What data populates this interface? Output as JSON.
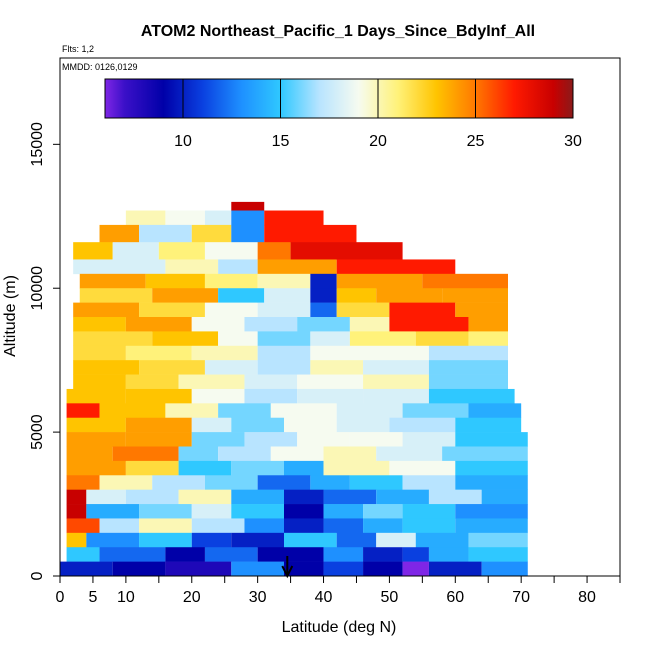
{
  "chart_data": {
    "type": "heatmap",
    "title": "ATOM2 Northeast_Pacific_1 Days_Since_BdyInf_All",
    "flights_note": "Flts: 1,2",
    "dates_note": "MMDD: 0126,0129",
    "xlabel": "Latitude (deg N)",
    "ylabel": "Altitude (m)",
    "xlim": [
      0,
      85
    ],
    "ylim": [
      0,
      18000
    ],
    "x_ticks": [
      0,
      5,
      10,
      20,
      30,
      40,
      50,
      60,
      70,
      80
    ],
    "x_minor_ticks": [
      15,
      25,
      35,
      45,
      55,
      65,
      75,
      85
    ],
    "y_ticks": [
      0,
      5000,
      10000,
      15000
    ],
    "colorbar": {
      "range": [
        6,
        30
      ],
      "ticks": [
        10,
        15,
        20,
        25,
        30
      ],
      "stops": [
        {
          "v": 6,
          "color": "#7f26e6"
        },
        {
          "v": 7,
          "color": "#3b10c8"
        },
        {
          "v": 9,
          "color": "#0000a8"
        },
        {
          "v": 11,
          "color": "#0a40e0"
        },
        {
          "v": 13,
          "color": "#1e90ff"
        },
        {
          "v": 15,
          "color": "#2fc8ff"
        },
        {
          "v": 17,
          "color": "#b8e4ff"
        },
        {
          "v": 19,
          "color": "#f6fbf0"
        },
        {
          "v": 21,
          "color": "#fff27a"
        },
        {
          "v": 23,
          "color": "#ffc400"
        },
        {
          "v": 25,
          "color": "#ff7800"
        },
        {
          "v": 27,
          "color": "#ff1a00"
        },
        {
          "v": 29,
          "color": "#c80000"
        },
        {
          "v": 30,
          "color": "#8b1a1a"
        }
      ]
    },
    "marker": {
      "type": "arrow",
      "x": 34.5
    },
    "bands": [
      {
        "alt": [
          12700,
          13000
        ],
        "segs": [
          [
            26,
            31,
            29
          ]
        ]
      },
      {
        "alt": [
          12200,
          12700
        ],
        "segs": [
          [
            10,
            16,
            20
          ],
          [
            16,
            22,
            19
          ],
          [
            22,
            26,
            18
          ],
          [
            26,
            31,
            13
          ],
          [
            31,
            40,
            27
          ]
        ]
      },
      {
        "alt": [
          11600,
          12200
        ],
        "segs": [
          [
            6,
            12,
            24
          ],
          [
            12,
            20,
            17
          ],
          [
            20,
            26,
            22
          ],
          [
            26,
            31,
            13
          ],
          [
            31,
            45,
            27
          ]
        ]
      },
      {
        "alt": [
          11000,
          11600
        ],
        "segs": [
          [
            2,
            8,
            23
          ],
          [
            8,
            15,
            18
          ],
          [
            15,
            22,
            21
          ],
          [
            22,
            30,
            19
          ],
          [
            30,
            35,
            25
          ],
          [
            35,
            52,
            28
          ]
        ]
      },
      {
        "alt": [
          10500,
          11000
        ],
        "segs": [
          [
            2,
            16,
            18
          ],
          [
            16,
            24,
            20
          ],
          [
            24,
            30,
            17
          ],
          [
            30,
            42,
            24
          ],
          [
            42,
            60,
            27
          ]
        ]
      },
      {
        "alt": [
          10000,
          10500
        ],
        "segs": [
          [
            3,
            13,
            24
          ],
          [
            13,
            22,
            23
          ],
          [
            22,
            30,
            21
          ],
          [
            30,
            38,
            20
          ],
          [
            38,
            42,
            10
          ],
          [
            42,
            55,
            24
          ],
          [
            55,
            68,
            25
          ]
        ]
      },
      {
        "alt": [
          9500,
          10000
        ],
        "segs": [
          [
            3,
            14,
            22
          ],
          [
            14,
            24,
            24
          ],
          [
            24,
            31,
            15
          ],
          [
            31,
            38,
            18
          ],
          [
            38,
            42,
            10
          ],
          [
            42,
            48,
            23
          ],
          [
            48,
            58,
            24
          ],
          [
            58,
            68,
            24
          ]
        ]
      },
      {
        "alt": [
          9000,
          9500
        ],
        "segs": [
          [
            2,
            12,
            24
          ],
          [
            12,
            22,
            22
          ],
          [
            22,
            30,
            19
          ],
          [
            30,
            38,
            18
          ],
          [
            38,
            42,
            12
          ],
          [
            42,
            50,
            22
          ],
          [
            50,
            60,
            27
          ],
          [
            60,
            68,
            24
          ]
        ]
      },
      {
        "alt": [
          8500,
          9000
        ],
        "segs": [
          [
            2,
            10,
            23
          ],
          [
            10,
            20,
            24
          ],
          [
            20,
            28,
            19
          ],
          [
            28,
            36,
            17
          ],
          [
            36,
            44,
            16
          ],
          [
            44,
            50,
            20
          ],
          [
            50,
            62,
            27
          ],
          [
            62,
            68,
            24
          ]
        ]
      },
      {
        "alt": [
          8000,
          8500
        ],
        "segs": [
          [
            2,
            14,
            22
          ],
          [
            14,
            24,
            23
          ],
          [
            24,
            30,
            19
          ],
          [
            30,
            38,
            16
          ],
          [
            38,
            44,
            18
          ],
          [
            44,
            54,
            21
          ],
          [
            54,
            62,
            22
          ],
          [
            62,
            68,
            21
          ]
        ]
      },
      {
        "alt": [
          7500,
          8000
        ],
        "segs": [
          [
            2,
            10,
            22
          ],
          [
            10,
            20,
            21
          ],
          [
            20,
            30,
            20
          ],
          [
            30,
            38,
            17
          ],
          [
            38,
            46,
            19
          ],
          [
            46,
            56,
            19
          ],
          [
            56,
            68,
            17
          ]
        ]
      },
      {
        "alt": [
          7000,
          7500
        ],
        "segs": [
          [
            2,
            12,
            23
          ],
          [
            12,
            22,
            22
          ],
          [
            22,
            30,
            18
          ],
          [
            30,
            38,
            17
          ],
          [
            38,
            46,
            20
          ],
          [
            46,
            56,
            18
          ],
          [
            56,
            68,
            16
          ]
        ]
      },
      {
        "alt": [
          6500,
          7000
        ],
        "segs": [
          [
            2,
            10,
            23
          ],
          [
            10,
            18,
            22
          ],
          [
            18,
            28,
            20
          ],
          [
            28,
            36,
            18
          ],
          [
            36,
            46,
            19
          ],
          [
            46,
            56,
            20
          ],
          [
            56,
            68,
            16
          ]
        ]
      },
      {
        "alt": [
          6000,
          6500
        ],
        "segs": [
          [
            1,
            10,
            23
          ],
          [
            10,
            20,
            23
          ],
          [
            20,
            28,
            19
          ],
          [
            28,
            36,
            17
          ],
          [
            36,
            46,
            18
          ],
          [
            46,
            56,
            18
          ],
          [
            56,
            69,
            15
          ]
        ]
      },
      {
        "alt": [
          5500,
          6000
        ],
        "segs": [
          [
            1,
            6,
            27
          ],
          [
            6,
            16,
            23
          ],
          [
            16,
            24,
            20
          ],
          [
            24,
            32,
            16
          ],
          [
            32,
            42,
            19
          ],
          [
            42,
            52,
            18
          ],
          [
            52,
            62,
            16
          ],
          [
            62,
            70,
            14
          ]
        ]
      },
      {
        "alt": [
          5000,
          5500
        ],
        "segs": [
          [
            1,
            10,
            23
          ],
          [
            10,
            20,
            24
          ],
          [
            20,
            26,
            18
          ],
          [
            26,
            34,
            16
          ],
          [
            34,
            42,
            19
          ],
          [
            42,
            50,
            18
          ],
          [
            50,
            60,
            17
          ],
          [
            60,
            70,
            15
          ]
        ]
      },
      {
        "alt": [
          4500,
          5000
        ],
        "segs": [
          [
            1,
            10,
            24
          ],
          [
            10,
            20,
            24
          ],
          [
            20,
            28,
            16
          ],
          [
            28,
            36,
            17
          ],
          [
            36,
            44,
            19
          ],
          [
            44,
            52,
            19
          ],
          [
            52,
            60,
            18
          ],
          [
            60,
            71,
            15
          ]
        ]
      },
      {
        "alt": [
          4000,
          4500
        ],
        "segs": [
          [
            1,
            8,
            24
          ],
          [
            8,
            18,
            25
          ],
          [
            18,
            24,
            16
          ],
          [
            24,
            32,
            17
          ],
          [
            32,
            40,
            19
          ],
          [
            40,
            48,
            20
          ],
          [
            48,
            58,
            18
          ],
          [
            58,
            71,
            16
          ]
        ]
      },
      {
        "alt": [
          3500,
          4000
        ],
        "segs": [
          [
            1,
            10,
            24
          ],
          [
            10,
            18,
            22
          ],
          [
            18,
            26,
            15
          ],
          [
            26,
            34,
            16
          ],
          [
            34,
            40,
            14
          ],
          [
            40,
            50,
            20
          ],
          [
            50,
            60,
            19
          ],
          [
            60,
            71,
            15
          ]
        ]
      },
      {
        "alt": [
          3000,
          3500
        ],
        "segs": [
          [
            1,
            6,
            25
          ],
          [
            6,
            14,
            20
          ],
          [
            14,
            22,
            17
          ],
          [
            22,
            30,
            16
          ],
          [
            30,
            38,
            12
          ],
          [
            38,
            44,
            14
          ],
          [
            44,
            52,
            15
          ],
          [
            52,
            60,
            17
          ],
          [
            60,
            71,
            14
          ]
        ]
      },
      {
        "alt": [
          2500,
          3000
        ],
        "segs": [
          [
            1,
            4,
            29
          ],
          [
            4,
            10,
            18
          ],
          [
            10,
            18,
            17
          ],
          [
            18,
            26,
            20
          ],
          [
            26,
            34,
            14
          ],
          [
            34,
            40,
            10
          ],
          [
            40,
            48,
            12
          ],
          [
            48,
            56,
            14
          ],
          [
            56,
            64,
            17
          ],
          [
            64,
            71,
            14
          ]
        ]
      },
      {
        "alt": [
          2000,
          2500
        ],
        "segs": [
          [
            1,
            4,
            29
          ],
          [
            4,
            12,
            14
          ],
          [
            12,
            20,
            16
          ],
          [
            20,
            26,
            18
          ],
          [
            26,
            34,
            15
          ],
          [
            34,
            40,
            9
          ],
          [
            40,
            46,
            14
          ],
          [
            46,
            52,
            16
          ],
          [
            52,
            60,
            15
          ],
          [
            60,
            71,
            13
          ]
        ]
      },
      {
        "alt": [
          1500,
          2000
        ],
        "segs": [
          [
            1,
            6,
            26
          ],
          [
            6,
            12,
            17
          ],
          [
            12,
            20,
            20
          ],
          [
            20,
            28,
            17
          ],
          [
            28,
            34,
            13
          ],
          [
            34,
            40,
            10
          ],
          [
            40,
            46,
            12
          ],
          [
            46,
            52,
            14
          ],
          [
            52,
            60,
            15
          ],
          [
            60,
            71,
            14
          ]
        ]
      },
      {
        "alt": [
          1000,
          1500
        ],
        "segs": [
          [
            1,
            4,
            23
          ],
          [
            4,
            12,
            13
          ],
          [
            12,
            20,
            15
          ],
          [
            20,
            26,
            11
          ],
          [
            26,
            34,
            10
          ],
          [
            34,
            42,
            15
          ],
          [
            42,
            48,
            12
          ],
          [
            48,
            54,
            18
          ],
          [
            54,
            62,
            14
          ],
          [
            62,
            71,
            16
          ]
        ]
      },
      {
        "alt": [
          500,
          1000
        ],
        "segs": [
          [
            1,
            6,
            15
          ],
          [
            6,
            16,
            12
          ],
          [
            16,
            22,
            9
          ],
          [
            22,
            30,
            12
          ],
          [
            30,
            40,
            9
          ],
          [
            40,
            46,
            13
          ],
          [
            46,
            52,
            10
          ],
          [
            52,
            56,
            11
          ],
          [
            56,
            62,
            14
          ],
          [
            62,
            71,
            15
          ]
        ]
      },
      {
        "alt": [
          0,
          500
        ],
        "segs": [
          [
            0,
            8,
            10
          ],
          [
            8,
            16,
            9
          ],
          [
            16,
            26,
            8
          ],
          [
            26,
            34,
            13
          ],
          [
            34,
            40,
            9
          ],
          [
            40,
            46,
            11
          ],
          [
            46,
            52,
            9
          ],
          [
            52,
            56,
            6
          ],
          [
            56,
            64,
            10
          ],
          [
            64,
            71,
            13
          ]
        ]
      }
    ]
  }
}
